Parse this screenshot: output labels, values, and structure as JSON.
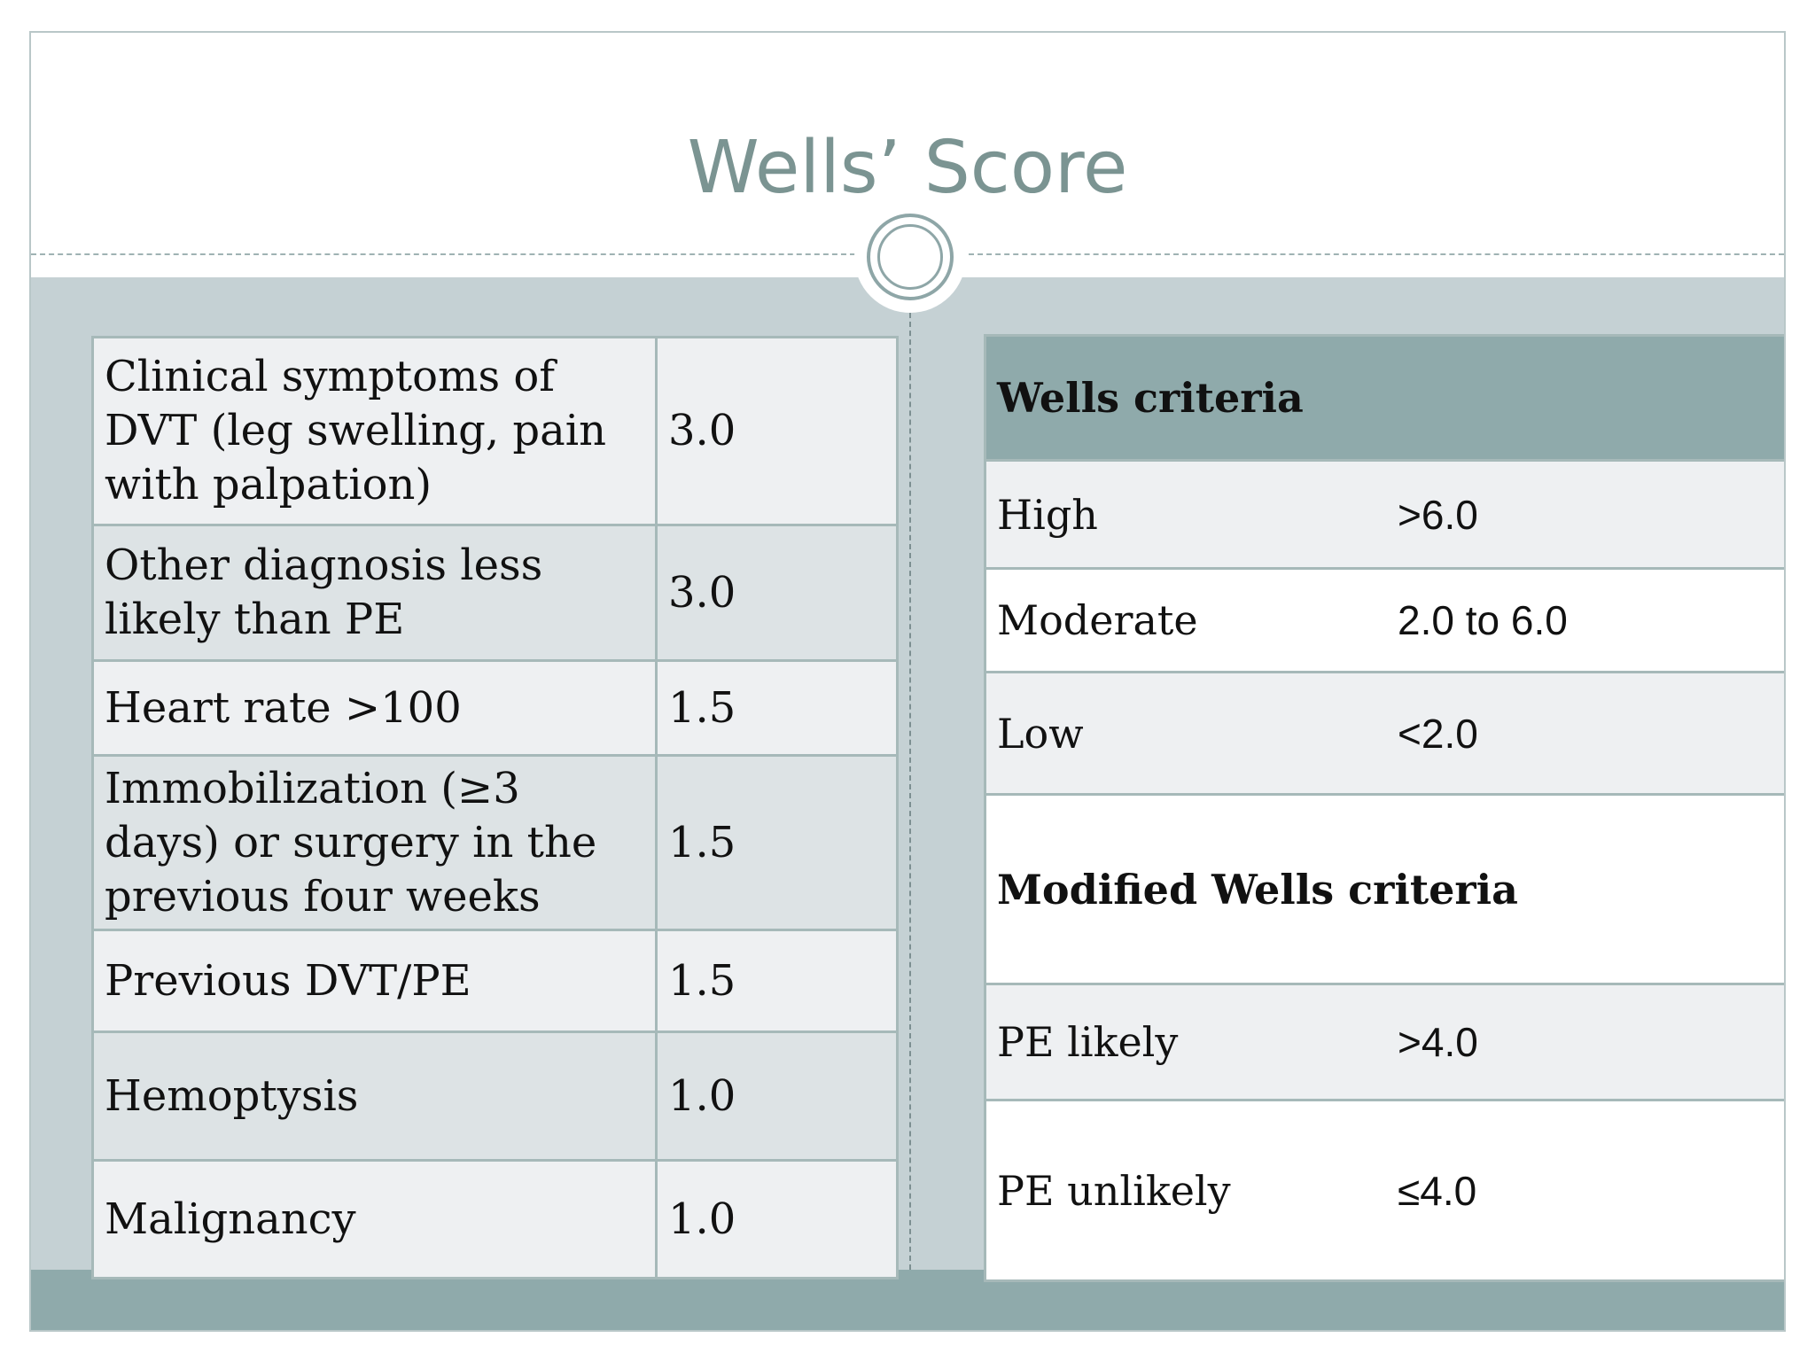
{
  "slide": {
    "title": "Wells’ Score"
  },
  "criteria_table": [
    {
      "criterion": "Clinical symptoms of DVT (leg swelling, pain with palpation)",
      "points": "3.0"
    },
    {
      "criterion": "Other diagnosis less likely than PE",
      "points": "3.0"
    },
    {
      "criterion": "Heart rate >100",
      "points": "1.5"
    },
    {
      "criterion": "Immobilization (≥3 days) or surgery in the previous four weeks",
      "points": "1.5"
    },
    {
      "criterion": "Previous DVT/PE",
      "points": "1.5"
    },
    {
      "criterion": "Hemoptysis",
      "points": "1.0"
    },
    {
      "criterion": "Malignancy",
      "points": "1.0"
    }
  ],
  "interpretation": {
    "wells_header": "Wells criteria",
    "wells_rows": [
      {
        "label": "High",
        "range": ">6.0"
      },
      {
        "label": "Moderate",
        "range": "2.0 to 6.0"
      },
      {
        "label": "Low",
        "range": "<2.0"
      }
    ],
    "modified_header": "Modified Wells criteria",
    "modified_rows": [
      {
        "label": "PE likely",
        "range": ">4.0"
      },
      {
        "label": "PE unlikely",
        "range": "≤4.0"
      }
    ]
  },
  "colors": {
    "title": "#7b9492",
    "accent_band": "#8faaab",
    "content_band": "#c5d1d4",
    "row_light": "#eef0f2",
    "row_dark": "#dde3e5"
  }
}
